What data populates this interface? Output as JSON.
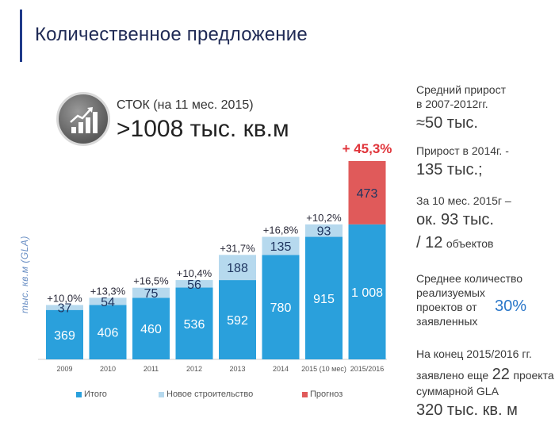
{
  "header": {
    "title": "Количественное предложение"
  },
  "stock": {
    "label": "СТОК (на 11 мес. 2015)",
    "value": ">1008 тыс. кв.м"
  },
  "colors": {
    "total": "#2aa0dc",
    "new": "#b6d9ee",
    "forecast": "#e05a5a",
    "growth_highlight": "#e0343a",
    "accent": "#1f3a8a"
  },
  "chart_data": {
    "type": "bar",
    "stacked": true,
    "categories": [
      "2009",
      "2010",
      "2011",
      "2012",
      "2013",
      "2014",
      "2015 (10 мес)",
      "2015/2016"
    ],
    "series": [
      {
        "name": "Итого",
        "values": [
          369,
          406,
          460,
          536,
          592,
          780,
          915,
          1008
        ],
        "labels": [
          "369",
          "406",
          "460",
          "536",
          "592",
          "780",
          "915",
          "1 008"
        ]
      },
      {
        "name": "Новое строительство",
        "values": [
          37,
          54,
          75,
          56,
          188,
          135,
          93,
          null
        ],
        "labels": [
          "37",
          "54",
          "75",
          "56",
          "188",
          "135",
          "93",
          ""
        ]
      },
      {
        "name": "Прогноз",
        "values": [
          null,
          null,
          null,
          null,
          null,
          null,
          null,
          473
        ],
        "labels": [
          "",
          "",
          "",
          "",
          "",
          "",
          "",
          "473"
        ]
      }
    ],
    "growth_labels": [
      "+10,0%",
      "+13,3%",
      "+16,5%",
      "+10,4%",
      "+31,7%",
      "+16,8%",
      "+10,2%",
      "+ 45,3%"
    ],
    "ylabel": "тыс. кв.м (GLA)",
    "ylim": [
      0,
      1481
    ],
    "grid": false,
    "legend_position": "bottom"
  },
  "sidebar": {
    "s1_line1": "Средний прирост",
    "s1_line2": "в 2007-2012гг.",
    "s1_value": "≈50 тыс.",
    "s2_line1": "Прирост в 2014г. -",
    "s2_value": "135 тыс.;",
    "s3_line1": "За 10 мес. 2015г –",
    "s3_value1": "ок. 93 тыс.",
    "s3_value2": "/ 12",
    "s3_value2_suffix": "объектов",
    "s4_line1": "Среднее количество",
    "s4_line2": "реализуемых",
    "s4_line3": "проектов от",
    "s4_line4": "заявленных",
    "s4_value": "30%",
    "s5_line1": "На конец 2015/2016 гг.",
    "s5_line2_prefix": "заявлено еще",
    "s5_line2_value": "22",
    "s5_line2_suffix": "проекта",
    "s5_line3": "суммарной GLA",
    "s5_value": "320 тыс. кв. м"
  }
}
